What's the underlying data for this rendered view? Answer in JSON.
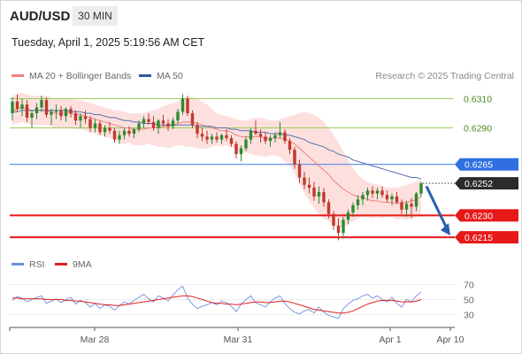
{
  "header": {
    "symbol": "AUD/USD",
    "timeframe": "30 MIN",
    "datetime": "Tuesday, April 1, 2025 5:19:56 AM CET"
  },
  "legend": {
    "ma20_label": "MA 20 + Bollinger Bands",
    "ma50_label": "MA 50",
    "ma20_color": "#f08080",
    "ma50_color": "#2d5aa0",
    "credit": "Research © 2025 Trading Central"
  },
  "rsi_legend": {
    "rsi_label": "RSI",
    "ma_label": "9MA",
    "rsi_color": "#6f8fe0",
    "ma_color": "#e02020"
  },
  "chart_data": {
    "type": "candlestick",
    "ylim": [
      0.6206,
      0.632
    ],
    "x_ticks": [
      "Mar 28",
      "Mar 31",
      "Apr 1",
      "Apr 10"
    ],
    "price_levels": [
      {
        "value": 0.631,
        "label": "0.6310",
        "kind": "resistance",
        "color": "#9acd5a"
      },
      {
        "value": 0.629,
        "label": "0.6290",
        "kind": "resistance",
        "color": "#9acd5a"
      },
      {
        "value": 0.6265,
        "label": "0.6265",
        "kind": "pivot",
        "color": "#3b7de6"
      },
      {
        "value": 0.6252,
        "label": "0.6252",
        "kind": "last",
        "color": "#333333"
      },
      {
        "value": 0.623,
        "label": "0.6230",
        "kind": "support",
        "color": "#e61919"
      },
      {
        "value": 0.6215,
        "label": "0.6215",
        "kind": "support",
        "color": "#e61919"
      }
    ],
    "forecast_arrow": {
      "from": 0.625,
      "to": 0.6215
    },
    "ohlc": [
      [
        0.63,
        0.6311,
        0.6295,
        0.6308
      ],
      [
        0.6308,
        0.6313,
        0.6301,
        0.6303
      ],
      [
        0.6303,
        0.631,
        0.6298,
        0.6306
      ],
      [
        0.6306,
        0.6309,
        0.6294,
        0.6297
      ],
      [
        0.6297,
        0.6302,
        0.629,
        0.63
      ],
      [
        0.63,
        0.6307,
        0.6296,
        0.6304
      ],
      [
        0.6304,
        0.6312,
        0.6301,
        0.6309
      ],
      [
        0.6309,
        0.6311,
        0.6297,
        0.6299
      ],
      [
        0.6299,
        0.6303,
        0.6292,
        0.6301
      ],
      [
        0.6301,
        0.6306,
        0.6296,
        0.6302
      ],
      [
        0.6302,
        0.6305,
        0.6295,
        0.6298
      ],
      [
        0.6298,
        0.6304,
        0.6294,
        0.6303
      ],
      [
        0.6303,
        0.6305,
        0.6297,
        0.63
      ],
      [
        0.63,
        0.6302,
        0.6292,
        0.6295
      ],
      [
        0.6295,
        0.63,
        0.629,
        0.6298
      ],
      [
        0.6298,
        0.6302,
        0.6293,
        0.6296
      ],
      [
        0.6296,
        0.6298,
        0.6287,
        0.629
      ],
      [
        0.629,
        0.6296,
        0.6287,
        0.6293
      ],
      [
        0.6293,
        0.6295,
        0.6285,
        0.6287
      ],
      [
        0.6287,
        0.6292,
        0.6284,
        0.629
      ],
      [
        0.629,
        0.6294,
        0.6286,
        0.6288
      ],
      [
        0.6288,
        0.629,
        0.628,
        0.6282
      ],
      [
        0.6282,
        0.6288,
        0.6279,
        0.6285
      ],
      [
        0.6285,
        0.629,
        0.6282,
        0.6288
      ],
      [
        0.6288,
        0.6291,
        0.6284,
        0.6286
      ],
      [
        0.6286,
        0.629,
        0.6283,
        0.6289
      ],
      [
        0.6289,
        0.6295,
        0.6287,
        0.6293
      ],
      [
        0.6293,
        0.6298,
        0.629,
        0.6296
      ],
      [
        0.6296,
        0.63,
        0.6292,
        0.6294
      ],
      [
        0.6294,
        0.6298,
        0.6288,
        0.629
      ],
      [
        0.629,
        0.6296,
        0.6286,
        0.6295
      ],
      [
        0.6295,
        0.6299,
        0.6291,
        0.6293
      ],
      [
        0.6293,
        0.6296,
        0.6288,
        0.6291
      ],
      [
        0.6291,
        0.6297,
        0.6289,
        0.6295
      ],
      [
        0.6295,
        0.6303,
        0.6293,
        0.6301
      ],
      [
        0.6301,
        0.6313,
        0.6299,
        0.631
      ],
      [
        0.631,
        0.6312,
        0.6298,
        0.63
      ],
      [
        0.63,
        0.6302,
        0.629,
        0.6292
      ],
      [
        0.6292,
        0.6294,
        0.6283,
        0.6286
      ],
      [
        0.6286,
        0.629,
        0.6281,
        0.6284
      ],
      [
        0.6284,
        0.6288,
        0.6279,
        0.6282
      ],
      [
        0.6282,
        0.6286,
        0.6279,
        0.6284
      ],
      [
        0.6284,
        0.6287,
        0.628,
        0.6282
      ],
      [
        0.6282,
        0.6286,
        0.6279,
        0.6285
      ],
      [
        0.6285,
        0.6289,
        0.6281,
        0.6283
      ],
      [
        0.6283,
        0.6285,
        0.6277,
        0.6279
      ],
      [
        0.6279,
        0.6281,
        0.6269,
        0.6272
      ],
      [
        0.6272,
        0.6278,
        0.6267,
        0.6276
      ],
      [
        0.6276,
        0.6284,
        0.6274,
        0.6282
      ],
      [
        0.6282,
        0.629,
        0.6279,
        0.6288
      ],
      [
        0.6288,
        0.6295,
        0.6285,
        0.6286
      ],
      [
        0.6286,
        0.6289,
        0.628,
        0.6284
      ],
      [
        0.6284,
        0.6287,
        0.6279,
        0.6281
      ],
      [
        0.6281,
        0.6285,
        0.6277,
        0.6283
      ],
      [
        0.6283,
        0.6287,
        0.628,
        0.6285
      ],
      [
        0.6285,
        0.6294,
        0.6283,
        0.6287
      ],
      [
        0.6287,
        0.6289,
        0.6279,
        0.6281
      ],
      [
        0.6281,
        0.6283,
        0.6272,
        0.6275
      ],
      [
        0.6275,
        0.6277,
        0.6262,
        0.6265
      ],
      [
        0.6265,
        0.6268,
        0.6252,
        0.6256
      ],
      [
        0.6256,
        0.626,
        0.6248,
        0.6251
      ],
      [
        0.6251,
        0.6256,
        0.6245,
        0.6249
      ],
      [
        0.6249,
        0.6253,
        0.624,
        0.6243
      ],
      [
        0.6243,
        0.625,
        0.6238,
        0.6246
      ],
      [
        0.6246,
        0.6249,
        0.6236,
        0.6239
      ],
      [
        0.6239,
        0.6241,
        0.6228,
        0.6231
      ],
      [
        0.6231,
        0.6233,
        0.622,
        0.6223
      ],
      [
        0.6223,
        0.6228,
        0.6213,
        0.6218
      ],
      [
        0.6218,
        0.6229,
        0.6214,
        0.6227
      ],
      [
        0.6227,
        0.6234,
        0.6224,
        0.6232
      ],
      [
        0.6232,
        0.6239,
        0.6229,
        0.6237
      ],
      [
        0.6237,
        0.6244,
        0.6234,
        0.6241
      ],
      [
        0.6241,
        0.6246,
        0.6237,
        0.6244
      ],
      [
        0.6244,
        0.6249,
        0.624,
        0.6247
      ],
      [
        0.6247,
        0.625,
        0.6242,
        0.6245
      ],
      [
        0.6245,
        0.6249,
        0.6241,
        0.6247
      ],
      [
        0.6247,
        0.625,
        0.6242,
        0.6244
      ],
      [
        0.6244,
        0.6247,
        0.6239,
        0.6241
      ],
      [
        0.6241,
        0.6245,
        0.6237,
        0.6243
      ],
      [
        0.6243,
        0.6246,
        0.6238,
        0.6239
      ],
      [
        0.6239,
        0.6241,
        0.6231,
        0.6234
      ],
      [
        0.6234,
        0.624,
        0.6229,
        0.6238
      ],
      [
        0.6238,
        0.6242,
        0.6228,
        0.6236
      ],
      [
        0.6236,
        0.6246,
        0.6233,
        0.6245
      ],
      [
        0.6245,
        0.6253,
        0.6243,
        0.6252
      ]
    ],
    "ma20": [
      0.6302,
      0.6303,
      0.6304,
      0.6303,
      0.6302,
      0.6302,
      0.6302,
      0.6302,
      0.6301,
      0.63,
      0.63,
      0.63,
      0.63,
      0.6299,
      0.6299,
      0.6298,
      0.6297,
      0.6296,
      0.6295,
      0.6294,
      0.6293,
      0.6292,
      0.6291,
      0.629,
      0.629,
      0.6289,
      0.6289,
      0.6289,
      0.629,
      0.629,
      0.629,
      0.6291,
      0.6291,
      0.6292,
      0.6293,
      0.6294,
      0.6294,
      0.6294,
      0.6293,
      0.6292,
      0.6291,
      0.629,
      0.6289,
      0.6288,
      0.6288,
      0.6287,
      0.6285,
      0.6284,
      0.6284,
      0.6284,
      0.6284,
      0.6284,
      0.6283,
      0.6283,
      0.6283,
      0.6283,
      0.6282,
      0.6281,
      0.6279,
      0.6276,
      0.6273,
      0.627,
      0.6267,
      0.6264,
      0.6261,
      0.6258,
      0.6254,
      0.6251,
      0.6248,
      0.6246,
      0.6244,
      0.6243,
      0.6242,
      0.6241,
      0.624,
      0.624,
      0.6239,
      0.6239,
      0.6239,
      0.6238,
      0.6239,
      0.6239,
      0.624,
      0.6241,
      0.6243
    ],
    "bb_upper": [
      0.6312,
      0.6313,
      0.6314,
      0.6313,
      0.6312,
      0.6312,
      0.6312,
      0.6312,
      0.6311,
      0.631,
      0.631,
      0.631,
      0.631,
      0.6309,
      0.6309,
      0.6308,
      0.6307,
      0.6306,
      0.6305,
      0.6304,
      0.6303,
      0.6302,
      0.6302,
      0.6301,
      0.63,
      0.63,
      0.63,
      0.63,
      0.6301,
      0.6302,
      0.6303,
      0.6305,
      0.6306,
      0.6307,
      0.6308,
      0.631,
      0.6311,
      0.6311,
      0.631,
      0.6308,
      0.6306,
      0.6303,
      0.63,
      0.6299,
      0.6298,
      0.6297,
      0.6296,
      0.6295,
      0.6295,
      0.6296,
      0.6297,
      0.6297,
      0.6296,
      0.6295,
      0.6295,
      0.6296,
      0.6297,
      0.6298,
      0.6299,
      0.63,
      0.6301,
      0.63,
      0.6299,
      0.6297,
      0.6294,
      0.629,
      0.6285,
      0.628,
      0.6274,
      0.6268,
      0.6262,
      0.6258,
      0.6255,
      0.6253,
      0.6252,
      0.6251,
      0.625,
      0.6249,
      0.6249,
      0.6249,
      0.625,
      0.6251,
      0.6252,
      0.6253,
      0.6255
    ],
    "bb_lower": [
      0.6292,
      0.6293,
      0.6294,
      0.6293,
      0.6292,
      0.6292,
      0.6292,
      0.6292,
      0.6291,
      0.629,
      0.629,
      0.629,
      0.629,
      0.6289,
      0.6289,
      0.6288,
      0.6287,
      0.6286,
      0.6285,
      0.6284,
      0.6283,
      0.6282,
      0.628,
      0.6279,
      0.628,
      0.6278,
      0.6278,
      0.6278,
      0.6279,
      0.6278,
      0.6277,
      0.6277,
      0.6276,
      0.6277,
      0.6278,
      0.6278,
      0.6277,
      0.6277,
      0.6276,
      0.6276,
      0.6276,
      0.6277,
      0.6278,
      0.6277,
      0.6278,
      0.6277,
      0.6274,
      0.6273,
      0.6273,
      0.6272,
      0.6271,
      0.6271,
      0.627,
      0.6271,
      0.6271,
      0.627,
      0.6267,
      0.6264,
      0.6259,
      0.6252,
      0.6245,
      0.624,
      0.6235,
      0.6231,
      0.6228,
      0.6226,
      0.6223,
      0.6222,
      0.6222,
      0.6224,
      0.6226,
      0.6228,
      0.6229,
      0.6229,
      0.6228,
      0.6229,
      0.6228,
      0.6229,
      0.6229,
      0.6227,
      0.6228,
      0.6227,
      0.6228,
      0.6229,
      0.6231
    ],
    "ma50": [
      0.6301,
      0.6301,
      0.6302,
      0.6302,
      0.6302,
      0.6302,
      0.6302,
      0.6302,
      0.6302,
      0.6302,
      0.6302,
      0.6302,
      0.6301,
      0.6301,
      0.6301,
      0.63,
      0.63,
      0.6299,
      0.6299,
      0.6298,
      0.6297,
      0.6297,
      0.6296,
      0.6295,
      0.6295,
      0.6294,
      0.6294,
      0.6293,
      0.6293,
      0.6293,
      0.6292,
      0.6292,
      0.6292,
      0.6292,
      0.6292,
      0.6292,
      0.6292,
      0.6292,
      0.6291,
      0.6291,
      0.6291,
      0.6291,
      0.629,
      0.629,
      0.629,
      0.6289,
      0.6289,
      0.6288,
      0.6288,
      0.6288,
      0.6287,
      0.6287,
      0.6287,
      0.6286,
      0.6286,
      0.6286,
      0.6285,
      0.6285,
      0.6284,
      0.6283,
      0.6282,
      0.628,
      0.6279,
      0.6278,
      0.6277,
      0.6275,
      0.6274,
      0.6272,
      0.6271,
      0.627,
      0.6268,
      0.6267,
      0.6266,
      0.6265,
      0.6264,
      0.6263,
      0.6262,
      0.6261,
      0.626,
      0.6259,
      0.6258,
      0.6257,
      0.6256,
      0.6256,
      0.6255
    ],
    "rsi_panel": {
      "ylim": [
        20,
        80
      ],
      "y_ticks": [
        70,
        50,
        30
      ],
      "rsi": [
        49,
        54,
        52,
        47,
        50,
        53,
        55,
        45,
        48,
        51,
        46,
        50,
        53,
        44,
        49,
        46,
        40,
        45,
        38,
        43,
        41,
        36,
        42,
        47,
        44,
        49,
        53,
        57,
        51,
        47,
        55,
        52,
        48,
        56,
        63,
        68,
        52,
        44,
        38,
        41,
        43,
        46,
        43,
        48,
        46,
        41,
        34,
        44,
        50,
        55,
        46,
        43,
        40,
        47,
        52,
        55,
        45,
        38,
        33,
        31,
        35,
        37,
        32,
        40,
        33,
        29,
        27,
        25,
        38,
        44,
        49,
        51,
        55,
        57,
        52,
        55,
        50,
        47,
        53,
        45,
        40,
        50,
        47,
        55,
        60
      ],
      "ma9": [
        52,
        52,
        51,
        51,
        51,
        51,
        51,
        50,
        50,
        50,
        50,
        49,
        49,
        48,
        48,
        47,
        46,
        45,
        44,
        43,
        43,
        42,
        42,
        43,
        44,
        45,
        46,
        47,
        48,
        49,
        50,
        51,
        52,
        53,
        54,
        55,
        55,
        54,
        52,
        50,
        48,
        46,
        45,
        45,
        44,
        44,
        43,
        44,
        45,
        46,
        47,
        47,
        46,
        46,
        47,
        48,
        48,
        47,
        45,
        43,
        41,
        39,
        37,
        36,
        35,
        34,
        33,
        32,
        32,
        33,
        35,
        38,
        41,
        44,
        46,
        48,
        49,
        49,
        49,
        48,
        47,
        47,
        47,
        48,
        50
      ]
    }
  }
}
